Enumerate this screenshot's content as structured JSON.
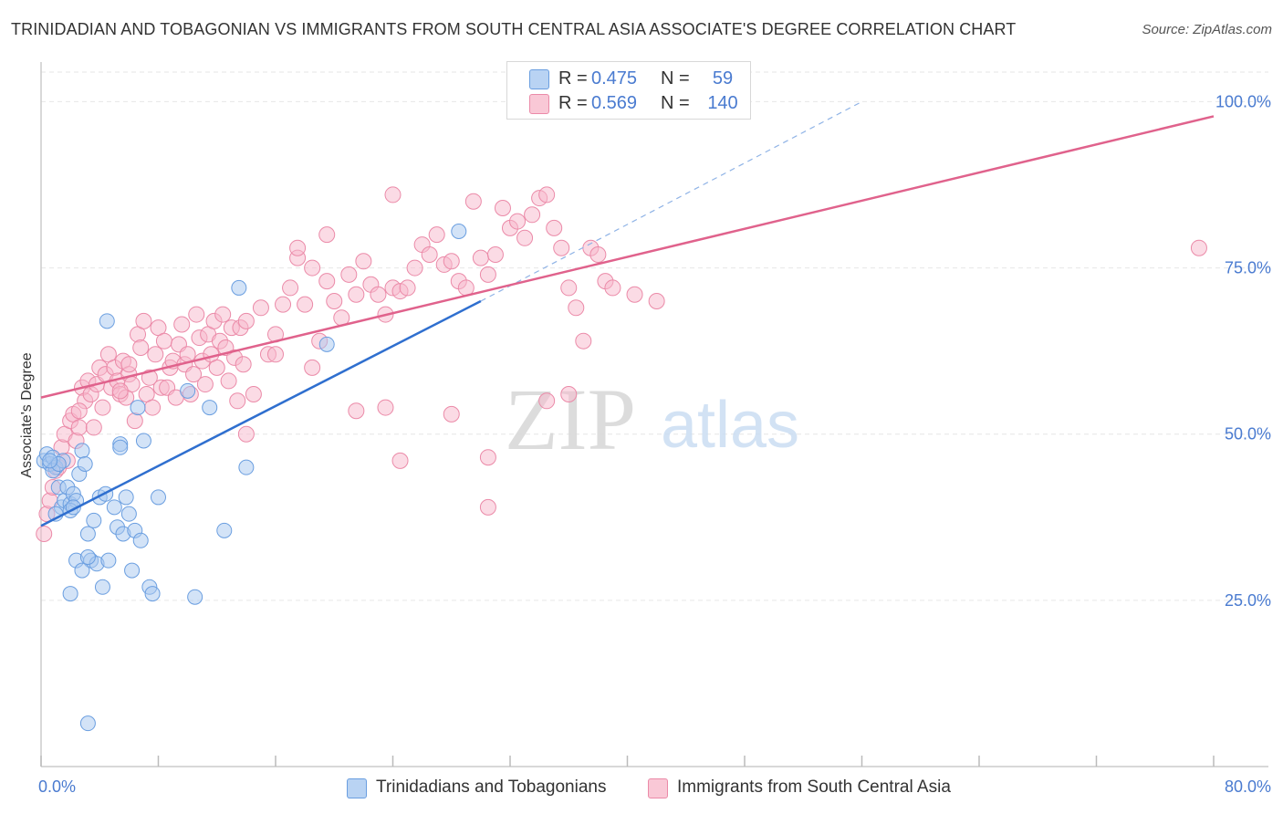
{
  "title": "TRINIDADIAN AND TOBAGONIAN VS IMMIGRANTS FROM SOUTH CENTRAL ASIA ASSOCIATE'S DEGREE CORRELATION CHART",
  "source": "Source: ZipAtlas.com",
  "watermark": {
    "zip": "ZIP",
    "atlas": "atlas"
  },
  "colors": {
    "blue_fill": "#a8c8f0",
    "blue_stroke": "#6a9ee0",
    "blue_line": "#2f6fcf",
    "pink_fill": "#f7b8cb",
    "pink_stroke": "#eb8aa8",
    "pink_line": "#e0628c",
    "accent_text": "#4a7bd0"
  },
  "legend": {
    "rows": [
      {
        "r_label": "R =",
        "r_value": "0.475",
        "n_label": "N =",
        "n_value": "59"
      },
      {
        "r_label": "R =",
        "r_value": "0.569",
        "n_label": "N =",
        "n_value": "140"
      }
    ]
  },
  "chart_data": {
    "type": "scatter",
    "title": "TRINIDADIAN AND TOBAGONIAN VS IMMIGRANTS FROM SOUTH CENTRAL ASIA ASSOCIATE'S DEGREE CORRELATION CHART",
    "xlabel": "",
    "ylabel": "Associate's Degree",
    "xlim": [
      0,
      80
    ],
    "ylim": [
      0,
      105
    ],
    "x_tick_labels": [
      "0.0%",
      "80.0%"
    ],
    "y_ticks": [
      25,
      50,
      75,
      100
    ],
    "y_tick_labels": [
      "25.0%",
      "50.0%",
      "75.0%",
      "100.0%"
    ],
    "grid": true,
    "legend_position": "bottom",
    "series": [
      {
        "name": "Trinidadians and Tobagonians",
        "color": "#a8c8f0",
        "R": 0.475,
        "N": 59,
        "trend": {
          "x": [
            0,
            30
          ],
          "y": [
            36.2,
            70.0
          ],
          "dashed_extension": {
            "x": [
              30,
              56
            ],
            "y": [
              70.0,
              100.0
            ]
          }
        },
        "points": [
          [
            0.2,
            46
          ],
          [
            0.4,
            47
          ],
          [
            0.6,
            45.5
          ],
          [
            0.8,
            46.5
          ],
          [
            1.0,
            45
          ],
          [
            1.2,
            42
          ],
          [
            1.4,
            39
          ],
          [
            1.6,
            40
          ],
          [
            1.8,
            42
          ],
          [
            1.0,
            38
          ],
          [
            2.0,
            39.5
          ],
          [
            2.2,
            41
          ],
          [
            2.4,
            40
          ],
          [
            2.0,
            38.5
          ],
          [
            2.6,
            44
          ],
          [
            2.8,
            47.5
          ],
          [
            3.0,
            45.5
          ],
          [
            3.2,
            35
          ],
          [
            3.4,
            31
          ],
          [
            3.6,
            37
          ],
          [
            3.8,
            30.5
          ],
          [
            4.0,
            40.5
          ],
          [
            4.2,
            27
          ],
          [
            4.4,
            41
          ],
          [
            2.4,
            31
          ],
          [
            2.8,
            29.5
          ],
          [
            3.2,
            31.5
          ],
          [
            4.5,
            67
          ],
          [
            4.6,
            31
          ],
          [
            5.0,
            39
          ],
          [
            5.2,
            36
          ],
          [
            5.4,
            48.5
          ],
          [
            5.6,
            35
          ],
          [
            5.8,
            40.5
          ],
          [
            6.0,
            38
          ],
          [
            6.2,
            29.5
          ],
          [
            6.4,
            35.5
          ],
          [
            6.6,
            54
          ],
          [
            6.8,
            34
          ],
          [
            7.0,
            49
          ],
          [
            7.4,
            27
          ],
          [
            7.6,
            26
          ],
          [
            8.0,
            40.5
          ],
          [
            2.0,
            26
          ],
          [
            10.0,
            56.5
          ],
          [
            10.5,
            25.5
          ],
          [
            11.5,
            54
          ],
          [
            12.5,
            35.5
          ],
          [
            13.5,
            72
          ],
          [
            14.0,
            45
          ],
          [
            19.5,
            63.5
          ],
          [
            28.5,
            80.5
          ],
          [
            3.2,
            6.5
          ],
          [
            1.5,
            46
          ],
          [
            0.8,
            44.5
          ],
          [
            2.2,
            39
          ],
          [
            5.4,
            48
          ],
          [
            1.2,
            45.5
          ],
          [
            0.6,
            46
          ]
        ]
      },
      {
        "name": "Immigrants from South Central Asia",
        "color": "#f7b8cb",
        "R": 0.569,
        "N": 140,
        "trend": {
          "x": [
            0,
            80
          ],
          "y": [
            55.5,
            97.8
          ]
        },
        "points": [
          [
            0.2,
            35
          ],
          [
            0.4,
            38
          ],
          [
            0.6,
            40
          ],
          [
            0.8,
            42
          ],
          [
            1.0,
            44.5
          ],
          [
            1.2,
            45
          ],
          [
            1.4,
            48
          ],
          [
            1.6,
            50
          ],
          [
            1.8,
            46
          ],
          [
            2.0,
            52
          ],
          [
            2.2,
            53
          ],
          [
            2.4,
            49
          ],
          [
            2.6,
            51
          ],
          [
            2.8,
            57
          ],
          [
            3.0,
            55
          ],
          [
            3.2,
            58
          ],
          [
            3.4,
            56
          ],
          [
            3.6,
            51
          ],
          [
            3.8,
            57.5
          ],
          [
            4.0,
            60
          ],
          [
            4.2,
            54
          ],
          [
            4.4,
            59
          ],
          [
            4.6,
            62
          ],
          [
            4.8,
            57
          ],
          [
            5.0,
            60
          ],
          [
            5.2,
            58
          ],
          [
            5.4,
            56
          ],
          [
            5.6,
            61
          ],
          [
            5.8,
            55.5
          ],
          [
            6.0,
            59
          ],
          [
            6.2,
            57.5
          ],
          [
            6.4,
            52
          ],
          [
            6.6,
            65
          ],
          [
            6.8,
            63
          ],
          [
            7.0,
            67
          ],
          [
            7.2,
            56
          ],
          [
            7.4,
            58.5
          ],
          [
            7.6,
            54
          ],
          [
            7.8,
            62
          ],
          [
            8.0,
            66
          ],
          [
            8.2,
            57
          ],
          [
            8.4,
            64
          ],
          [
            8.6,
            57
          ],
          [
            8.8,
            60
          ],
          [
            9.0,
            61
          ],
          [
            9.2,
            55.5
          ],
          [
            9.4,
            63.5
          ],
          [
            9.6,
            66.5
          ],
          [
            9.8,
            60.5
          ],
          [
            10.0,
            62
          ],
          [
            10.2,
            56
          ],
          [
            10.4,
            59
          ],
          [
            10.6,
            68
          ],
          [
            10.8,
            64.5
          ],
          [
            11.0,
            61
          ],
          [
            11.2,
            57.5
          ],
          [
            11.4,
            65
          ],
          [
            11.6,
            62
          ],
          [
            11.8,
            67
          ],
          [
            12.0,
            60
          ],
          [
            12.2,
            64
          ],
          [
            12.4,
            68
          ],
          [
            12.6,
            63
          ],
          [
            12.8,
            58
          ],
          [
            13.0,
            66
          ],
          [
            13.2,
            61.5
          ],
          [
            13.4,
            55
          ],
          [
            13.6,
            66
          ],
          [
            13.8,
            60.5
          ],
          [
            14.0,
            67
          ],
          [
            14.5,
            56
          ],
          [
            15.0,
            69
          ],
          [
            15.5,
            62
          ],
          [
            16.0,
            65
          ],
          [
            16.5,
            69.5
          ],
          [
            17.0,
            72
          ],
          [
            17.5,
            76.5
          ],
          [
            18.0,
            69.5
          ],
          [
            18.5,
            75
          ],
          [
            19.0,
            64
          ],
          [
            19.5,
            73
          ],
          [
            20.0,
            70
          ],
          [
            20.5,
            67.5
          ],
          [
            21.0,
            74
          ],
          [
            21.5,
            71
          ],
          [
            22.0,
            76
          ],
          [
            22.5,
            72.5
          ],
          [
            23.0,
            71
          ],
          [
            23.5,
            68
          ],
          [
            24.0,
            72
          ],
          [
            24.5,
            71.5
          ],
          [
            25.0,
            72
          ],
          [
            25.5,
            75
          ],
          [
            26.0,
            78.5
          ],
          [
            26.5,
            77
          ],
          [
            27.0,
            80
          ],
          [
            27.5,
            75.5
          ],
          [
            28.0,
            76
          ],
          [
            28.5,
            73
          ],
          [
            29.0,
            72
          ],
          [
            29.5,
            85
          ],
          [
            30.0,
            76.5
          ],
          [
            30.5,
            74
          ],
          [
            31.0,
            77
          ],
          [
            31.5,
            84
          ],
          [
            32.0,
            81
          ],
          [
            32.5,
            82
          ],
          [
            33.0,
            79.5
          ],
          [
            33.5,
            83
          ],
          [
            34.0,
            85.5
          ],
          [
            34.5,
            86
          ],
          [
            35.0,
            81
          ],
          [
            35.5,
            78
          ],
          [
            36.0,
            72
          ],
          [
            36.5,
            69
          ],
          [
            37.0,
            64
          ],
          [
            37.5,
            78
          ],
          [
            38.0,
            77
          ],
          [
            38.5,
            73
          ],
          [
            39.0,
            72
          ],
          [
            17.5,
            78
          ],
          [
            19.5,
            80
          ],
          [
            24.0,
            86
          ],
          [
            6.0,
            60.5
          ],
          [
            2.6,
            53.5
          ],
          [
            5.4,
            56.5
          ],
          [
            18.5,
            60
          ],
          [
            14.0,
            50
          ],
          [
            23.5,
            54
          ],
          [
            21.5,
            53.5
          ],
          [
            24.5,
            46
          ],
          [
            28.0,
            53
          ],
          [
            30.5,
            46.5
          ],
          [
            30.5,
            39
          ],
          [
            34.5,
            55
          ],
          [
            36.0,
            56
          ],
          [
            40.5,
            71
          ],
          [
            42.0,
            70
          ],
          [
            79.0,
            78
          ],
          [
            16.0,
            62
          ]
        ]
      }
    ]
  },
  "bottom_legend": [
    {
      "label": "Trinidadians and Tobagonians"
    },
    {
      "label": "Immigrants from South Central Asia"
    }
  ]
}
